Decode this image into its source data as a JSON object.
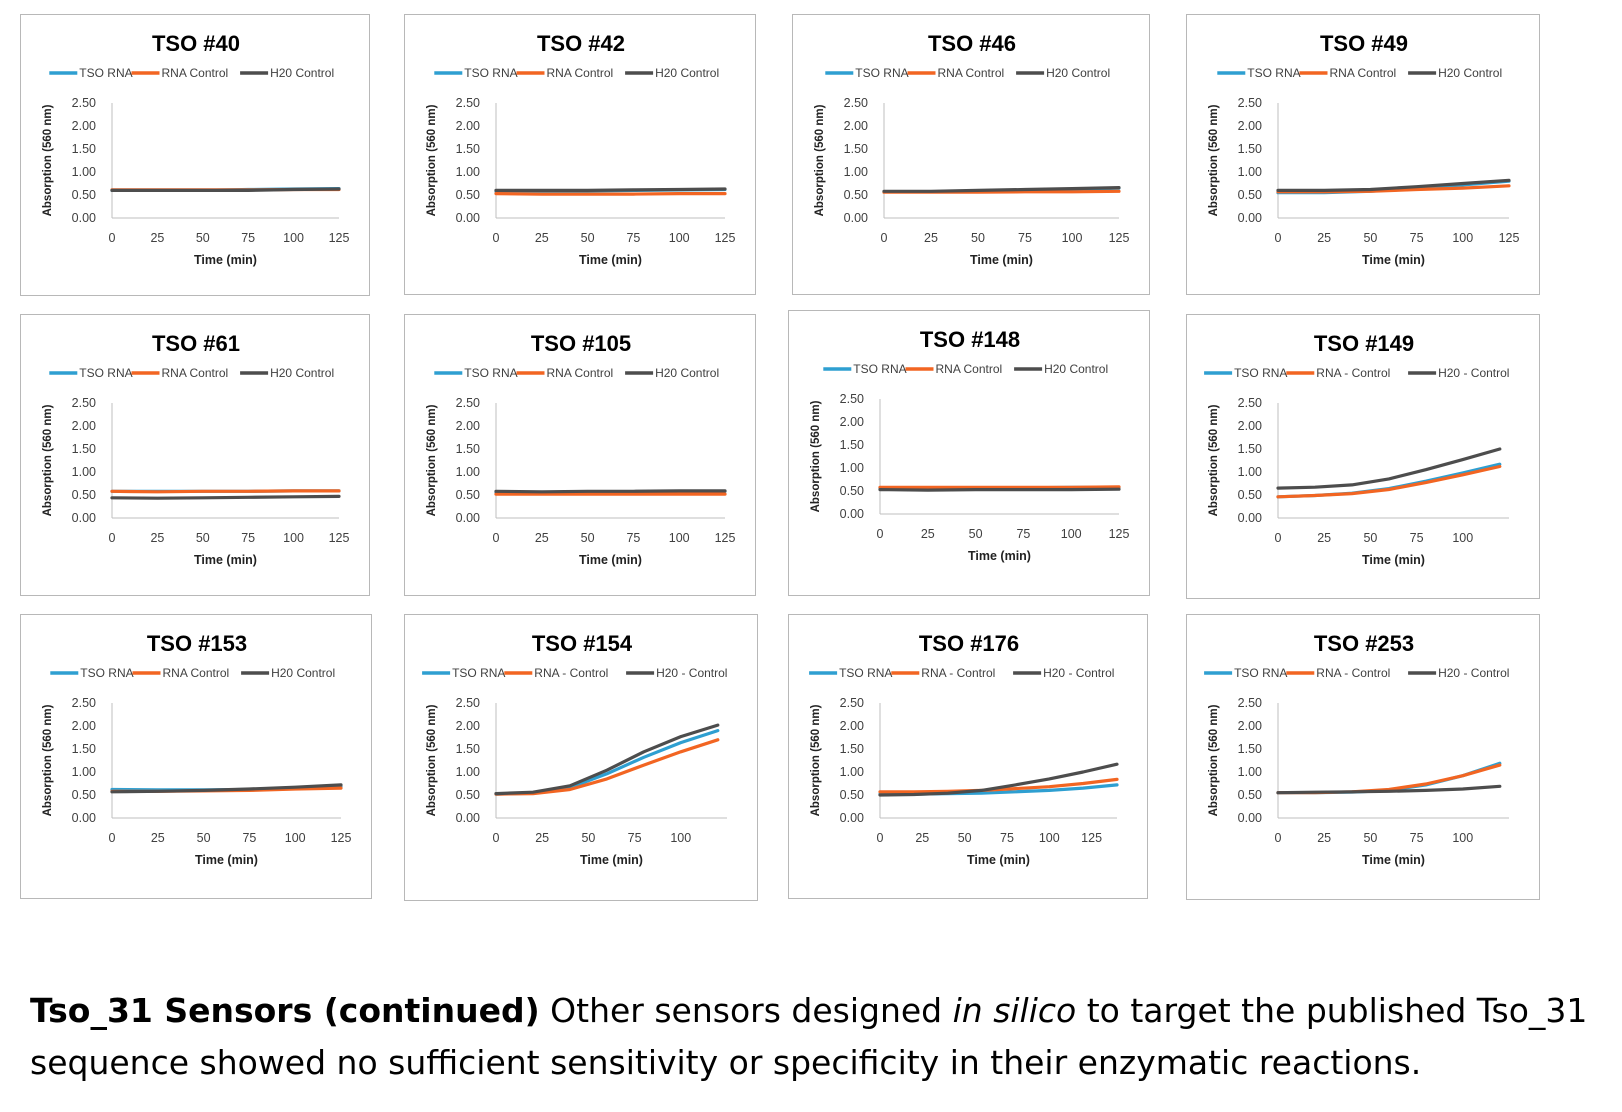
{
  "colors": {
    "tso_rna": "#2e9fd1",
    "rna_control": "#f26522",
    "h2o_control": "#4d4d4d",
    "axis": "#bfbfbf"
  },
  "caption": {
    "bold": "Tso_31 Sensors (continued)",
    "text1": " Other sensors designed ",
    "italic": "in silico",
    "text2": " to target the published Tso_31 sequence showed no sufficient sensitivity or specificity in their enzymatic reactions."
  },
  "chart_data": [
    {
      "type": "line",
      "title": "TSO #40",
      "xlabel": "Time (min)",
      "ylabel": "Absorption (560 nm)",
      "xticks": [
        0,
        25,
        50,
        75,
        100,
        125
      ],
      "yticks": [
        "0.00",
        "0.50",
        "1.00",
        "1.50",
        "2.00",
        "2.50"
      ],
      "xlim": [
        0,
        125
      ],
      "ylim": [
        0,
        2.5
      ],
      "legend": [
        "TSO RNA",
        "RNA Control",
        "H20 Control"
      ],
      "x": [
        0,
        25,
        50,
        75,
        100,
        125
      ],
      "series": [
        {
          "name": "TSO RNA",
          "values": [
            0.6,
            0.6,
            0.6,
            0.62,
            0.63,
            0.64
          ]
        },
        {
          "name": "RNA Control",
          "values": [
            0.61,
            0.61,
            0.61,
            0.61,
            0.62,
            0.62
          ]
        },
        {
          "name": "H20 Control",
          "values": [
            0.6,
            0.6,
            0.6,
            0.6,
            0.62,
            0.63
          ]
        }
      ]
    },
    {
      "type": "line",
      "title": "TSO #42",
      "xlabel": "Time (min)",
      "ylabel": "Absorption (560 nm)",
      "xticks": [
        0,
        25,
        50,
        75,
        100,
        125
      ],
      "yticks": [
        "0.00",
        "0.50",
        "1.00",
        "1.50",
        "2.00",
        "2.50"
      ],
      "xlim": [
        0,
        125
      ],
      "ylim": [
        0,
        2.5
      ],
      "legend": [
        "TSO RNA",
        "RNA Control",
        "H20 Control"
      ],
      "x": [
        0,
        25,
        50,
        75,
        100,
        125
      ],
      "series": [
        {
          "name": "TSO RNA",
          "values": [
            0.58,
            0.58,
            0.59,
            0.6,
            0.61,
            0.62
          ]
        },
        {
          "name": "RNA Control",
          "values": [
            0.53,
            0.52,
            0.52,
            0.52,
            0.53,
            0.53
          ]
        },
        {
          "name": "H20 Control",
          "values": [
            0.6,
            0.6,
            0.6,
            0.61,
            0.62,
            0.63
          ]
        }
      ]
    },
    {
      "type": "line",
      "title": "TSO #46",
      "xlabel": "Time (min)",
      "ylabel": "Absorption (560 nm)",
      "xticks": [
        0,
        25,
        50,
        75,
        100,
        125
      ],
      "yticks": [
        "0.00",
        "0.50",
        "1.00",
        "1.50",
        "2.00",
        "2.50"
      ],
      "xlim": [
        0,
        125
      ],
      "ylim": [
        0,
        2.5
      ],
      "legend": [
        "TSO RNA",
        "RNA Control",
        "H20 Control"
      ],
      "x": [
        0,
        25,
        50,
        75,
        100,
        125
      ],
      "series": [
        {
          "name": "TSO RNA",
          "values": [
            0.57,
            0.57,
            0.58,
            0.6,
            0.62,
            0.65
          ]
        },
        {
          "name": "RNA Control",
          "values": [
            0.56,
            0.56,
            0.56,
            0.57,
            0.57,
            0.58
          ]
        },
        {
          "name": "H20 Control",
          "values": [
            0.58,
            0.58,
            0.6,
            0.62,
            0.64,
            0.66
          ]
        }
      ]
    },
    {
      "type": "line",
      "title": "TSO #49",
      "xlabel": "Time (min)",
      "ylabel": "Absorption (560 nm)",
      "xticks": [
        0,
        25,
        50,
        75,
        100,
        125
      ],
      "yticks": [
        "0.00",
        "0.50",
        "1.00",
        "1.50",
        "2.00",
        "2.50"
      ],
      "xlim": [
        0,
        125
      ],
      "ylim": [
        0,
        2.5
      ],
      "legend": [
        "TSO RNA",
        "RNA Control",
        "H20 Control"
      ],
      "x": [
        0,
        25,
        50,
        75,
        100,
        125
      ],
      "series": [
        {
          "name": "TSO RNA",
          "values": [
            0.55,
            0.55,
            0.58,
            0.65,
            0.72,
            0.8
          ]
        },
        {
          "name": "RNA Control",
          "values": [
            0.57,
            0.57,
            0.58,
            0.62,
            0.65,
            0.7
          ]
        },
        {
          "name": "H20 Control",
          "values": [
            0.6,
            0.6,
            0.62,
            0.68,
            0.75,
            0.82
          ]
        }
      ]
    },
    {
      "type": "line",
      "title": "TSO #61",
      "xlabel": "Time (min)",
      "ylabel": "Absorption (560 nm)",
      "xticks": [
        0,
        25,
        50,
        75,
        100,
        125
      ],
      "yticks": [
        "0.00",
        "0.50",
        "1.00",
        "1.50",
        "2.00",
        "2.50"
      ],
      "xlim": [
        0,
        125
      ],
      "ylim": [
        0,
        2.5
      ],
      "legend": [
        "TSO RNA",
        "RNA Control",
        "H20 Control"
      ],
      "x": [
        0,
        25,
        50,
        75,
        100,
        125
      ],
      "series": [
        {
          "name": "TSO RNA",
          "values": [
            0.58,
            0.58,
            0.58,
            0.58,
            0.59,
            0.59
          ]
        },
        {
          "name": "RNA Control",
          "values": [
            0.58,
            0.57,
            0.58,
            0.58,
            0.59,
            0.59
          ]
        },
        {
          "name": "H20 Control",
          "values": [
            0.44,
            0.43,
            0.44,
            0.45,
            0.46,
            0.47
          ]
        }
      ]
    },
    {
      "type": "line",
      "title": "TSO #105",
      "xlabel": "Time (min)",
      "ylabel": "Absorption (560 nm)",
      "xticks": [
        0,
        25,
        50,
        75,
        100,
        125
      ],
      "yticks": [
        "0.00",
        "0.50",
        "1.00",
        "1.50",
        "2.00",
        "2.50"
      ],
      "xlim": [
        0,
        125
      ],
      "ylim": [
        0,
        2.5
      ],
      "legend": [
        "TSO RNA",
        "RNA Control",
        "H20 Control"
      ],
      "x": [
        0,
        25,
        50,
        75,
        100,
        125
      ],
      "series": [
        {
          "name": "TSO RNA",
          "values": [
            0.56,
            0.56,
            0.57,
            0.57,
            0.58,
            0.58
          ]
        },
        {
          "name": "RNA Control",
          "values": [
            0.52,
            0.52,
            0.52,
            0.52,
            0.52,
            0.52
          ]
        },
        {
          "name": "H20 Control",
          "values": [
            0.58,
            0.57,
            0.58,
            0.58,
            0.59,
            0.59
          ]
        }
      ]
    },
    {
      "type": "line",
      "title": "TSO #148",
      "xlabel": "Time (min)",
      "ylabel": "Absorption (560 nm)",
      "xticks": [
        0,
        25,
        50,
        75,
        100,
        125
      ],
      "yticks": [
        "0.00",
        "0.50",
        "1.00",
        "1.50",
        "2.00",
        "2.50"
      ],
      "xlim": [
        0,
        125
      ],
      "ylim": [
        0,
        2.5
      ],
      "legend": [
        "TSO RNA",
        "RNA Control",
        "H20 Control"
      ],
      "x": [
        0,
        25,
        50,
        75,
        100,
        125
      ],
      "series": [
        {
          "name": "TSO RNA",
          "values": [
            0.57,
            0.57,
            0.57,
            0.57,
            0.58,
            0.58
          ]
        },
        {
          "name": "RNA Control",
          "values": [
            0.58,
            0.58,
            0.58,
            0.58,
            0.58,
            0.59
          ]
        },
        {
          "name": "H20 Control",
          "values": [
            0.53,
            0.52,
            0.53,
            0.53,
            0.53,
            0.54
          ]
        }
      ]
    },
    {
      "type": "line",
      "title": "TSO #149",
      "xlabel": "Time (min)",
      "ylabel": "Absorption (560 nm)",
      "xticks": [
        0,
        25,
        50,
        75,
        100
      ],
      "yticks": [
        "0.00",
        "0.50",
        "1.00",
        "1.50",
        "2.00",
        "2.50"
      ],
      "xlim": [
        0,
        125
      ],
      "ylim": [
        0,
        2.5
      ],
      "legend": [
        "TSO RNA",
        "RNA - Control",
        "H20 - Control"
      ],
      "x": [
        0,
        20,
        40,
        60,
        80,
        100,
        120
      ],
      "series": [
        {
          "name": "TSO RNA",
          "values": [
            0.46,
            0.49,
            0.54,
            0.64,
            0.8,
            0.98,
            1.17
          ]
        },
        {
          "name": "RNA - Control",
          "values": [
            0.46,
            0.49,
            0.53,
            0.62,
            0.77,
            0.94,
            1.12
          ]
        },
        {
          "name": "H20 - Control",
          "values": [
            0.65,
            0.67,
            0.72,
            0.85,
            1.05,
            1.27,
            1.5
          ]
        }
      ]
    },
    {
      "type": "line",
      "title": "TSO #153",
      "xlabel": "Time (min)",
      "ylabel": "Absorption (560 nm)",
      "xticks": [
        0,
        25,
        50,
        75,
        100,
        125
      ],
      "yticks": [
        "0.00",
        "0.50",
        "1.00",
        "1.50",
        "2.00",
        "2.50"
      ],
      "xlim": [
        0,
        125
      ],
      "ylim": [
        0,
        2.5
      ],
      "legend": [
        "TSO RNA",
        "RNA Control",
        "H20 Control"
      ],
      "x": [
        0,
        25,
        50,
        75,
        100,
        125
      ],
      "series": [
        {
          "name": "TSO RNA",
          "values": [
            0.62,
            0.61,
            0.61,
            0.62,
            0.65,
            0.68
          ]
        },
        {
          "name": "RNA Control",
          "values": [
            0.58,
            0.58,
            0.59,
            0.6,
            0.63,
            0.65
          ]
        },
        {
          "name": "H20 Control",
          "values": [
            0.57,
            0.58,
            0.6,
            0.63,
            0.67,
            0.72
          ]
        }
      ]
    },
    {
      "type": "line",
      "title": "TSO #154",
      "xlabel": "Time (min)",
      "ylabel": "Absorption (560 nm)",
      "xticks": [
        0,
        25,
        50,
        75,
        100
      ],
      "yticks": [
        "0.00",
        "0.50",
        "1.00",
        "1.50",
        "2.00",
        "2.50"
      ],
      "xlim": [
        0,
        125
      ],
      "ylim": [
        0,
        2.5
      ],
      "legend": [
        "TSO RNA",
        "RNA - Control",
        "H20 - Control"
      ],
      "x": [
        0,
        20,
        40,
        60,
        80,
        100,
        120
      ],
      "series": [
        {
          "name": "TSO RNA",
          "values": [
            0.52,
            0.54,
            0.66,
            0.96,
            1.32,
            1.64,
            1.9
          ]
        },
        {
          "name": "RNA - Control",
          "values": [
            0.52,
            0.53,
            0.62,
            0.85,
            1.15,
            1.44,
            1.7
          ]
        },
        {
          "name": "H20 - Control",
          "values": [
            0.53,
            0.56,
            0.7,
            1.04,
            1.44,
            1.77,
            2.02
          ]
        }
      ]
    },
    {
      "type": "line",
      "title": "TSO #176",
      "xlabel": "Time (min)",
      "ylabel": "Absorption (560 nm)",
      "xticks": [
        0,
        25,
        50,
        75,
        100,
        125
      ],
      "yticks": [
        "0.00",
        "0.50",
        "1.00",
        "1.50",
        "2.00",
        "2.50"
      ],
      "xlim": [
        0,
        140
      ],
      "ylim": [
        0,
        2.5
      ],
      "legend": [
        "TSO RNA",
        "RNA - Control",
        "H20 - Control"
      ],
      "x": [
        0,
        20,
        40,
        60,
        80,
        100,
        120,
        140
      ],
      "series": [
        {
          "name": "TSO RNA",
          "values": [
            0.52,
            0.52,
            0.53,
            0.54,
            0.57,
            0.6,
            0.65,
            0.72
          ]
        },
        {
          "name": "RNA - Control",
          "values": [
            0.57,
            0.57,
            0.58,
            0.6,
            0.64,
            0.68,
            0.75,
            0.84
          ]
        },
        {
          "name": "H20 - Control",
          "values": [
            0.5,
            0.51,
            0.54,
            0.6,
            0.72,
            0.85,
            1.0,
            1.17
          ]
        }
      ]
    },
    {
      "type": "line",
      "title": "TSO #253",
      "xlabel": "Time (min)",
      "ylabel": "Absorption (560 nm)",
      "xticks": [
        0,
        25,
        50,
        75,
        100
      ],
      "yticks": [
        "0.00",
        "0.50",
        "1.00",
        "1.50",
        "2.00",
        "2.50"
      ],
      "xlim": [
        0,
        125
      ],
      "ylim": [
        0,
        2.5
      ],
      "legend": [
        "TSO RNA",
        "RNA - Control",
        "H20 - Control"
      ],
      "x": [
        0,
        20,
        40,
        60,
        80,
        100,
        120
      ],
      "series": [
        {
          "name": "TSO RNA",
          "values": [
            0.55,
            0.55,
            0.56,
            0.6,
            0.72,
            0.92,
            1.19
          ]
        },
        {
          "name": "RNA - Control",
          "values": [
            0.55,
            0.55,
            0.57,
            0.62,
            0.74,
            0.92,
            1.15
          ]
        },
        {
          "name": "H20 - Control",
          "values": [
            0.55,
            0.56,
            0.57,
            0.58,
            0.6,
            0.63,
            0.69
          ]
        }
      ]
    }
  ]
}
